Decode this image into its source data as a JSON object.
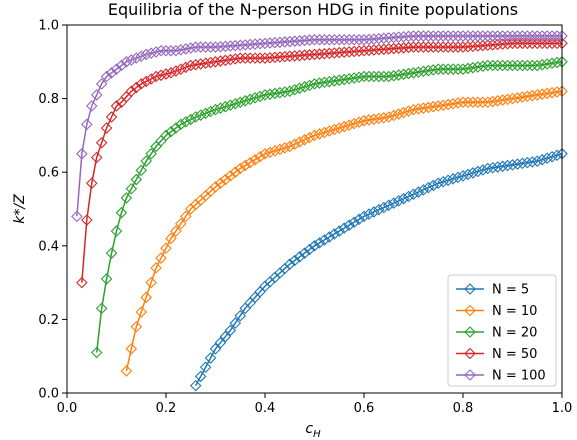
{
  "chart_data": {
    "type": "line",
    "title": "Equilibria of the N-person HDG in finite populations",
    "xlabel_main": "c",
    "xlabel_sub": "H",
    "ylabel": "k*/Z",
    "xlim": [
      0.0,
      1.0
    ],
    "ylim": [
      0.0,
      1.0
    ],
    "x_ticks": [
      "0.0",
      "0.2",
      "0.4",
      "0.6",
      "0.8",
      "1.0"
    ],
    "y_ticks": [
      "0.0",
      "0.2",
      "0.4",
      "0.6",
      "0.8",
      "1.0"
    ],
    "grid": false,
    "legend_position": "lower-right",
    "marker": "diamond-open",
    "series": [
      {
        "name": "N = 5",
        "color": "#1f77b4",
        "x_start": 0.26,
        "points": [
          [
            0.26,
            0.02
          ],
          [
            0.28,
            0.07
          ],
          [
            0.3,
            0.12
          ],
          [
            0.33,
            0.17
          ],
          [
            0.36,
            0.23
          ],
          [
            0.4,
            0.29
          ],
          [
            0.45,
            0.35
          ],
          [
            0.5,
            0.4
          ],
          [
            0.55,
            0.44
          ],
          [
            0.6,
            0.48
          ],
          [
            0.65,
            0.51
          ],
          [
            0.7,
            0.54
          ],
          [
            0.75,
            0.57
          ],
          [
            0.8,
            0.59
          ],
          [
            0.85,
            0.61
          ],
          [
            0.9,
            0.62
          ],
          [
            0.95,
            0.63
          ],
          [
            1.0,
            0.65
          ]
        ]
      },
      {
        "name": "N = 10",
        "color": "#ff7f0e",
        "x_start": 0.12,
        "points": [
          [
            0.12,
            0.06
          ],
          [
            0.13,
            0.12
          ],
          [
            0.14,
            0.18
          ],
          [
            0.16,
            0.26
          ],
          [
            0.18,
            0.34
          ],
          [
            0.21,
            0.42
          ],
          [
            0.25,
            0.5
          ],
          [
            0.3,
            0.56
          ],
          [
            0.35,
            0.61
          ],
          [
            0.4,
            0.65
          ],
          [
            0.45,
            0.67
          ],
          [
            0.5,
            0.7
          ],
          [
            0.55,
            0.72
          ],
          [
            0.6,
            0.74
          ],
          [
            0.65,
            0.75
          ],
          [
            0.7,
            0.77
          ],
          [
            0.75,
            0.78
          ],
          [
            0.8,
            0.79
          ],
          [
            0.85,
            0.79
          ],
          [
            0.9,
            0.8
          ],
          [
            0.95,
            0.81
          ],
          [
            1.0,
            0.82
          ]
        ]
      },
      {
        "name": "N = 20",
        "color": "#2ca02c",
        "x_start": 0.06,
        "points": [
          [
            0.06,
            0.11
          ],
          [
            0.07,
            0.23
          ],
          [
            0.08,
            0.31
          ],
          [
            0.09,
            0.38
          ],
          [
            0.1,
            0.44
          ],
          [
            0.11,
            0.49
          ],
          [
            0.12,
            0.53
          ],
          [
            0.14,
            0.58
          ],
          [
            0.16,
            0.63
          ],
          [
            0.18,
            0.67
          ],
          [
            0.2,
            0.7
          ],
          [
            0.23,
            0.73
          ],
          [
            0.26,
            0.75
          ],
          [
            0.3,
            0.77
          ],
          [
            0.35,
            0.79
          ],
          [
            0.4,
            0.81
          ],
          [
            0.45,
            0.82
          ],
          [
            0.5,
            0.84
          ],
          [
            0.55,
            0.85
          ],
          [
            0.6,
            0.86
          ],
          [
            0.65,
            0.86
          ],
          [
            0.7,
            0.87
          ],
          [
            0.75,
            0.88
          ],
          [
            0.8,
            0.88
          ],
          [
            0.85,
            0.89
          ],
          [
            0.9,
            0.89
          ],
          [
            0.95,
            0.89
          ],
          [
            1.0,
            0.9
          ]
        ]
      },
      {
        "name": "N = 50",
        "color": "#d62728",
        "x_start": 0.03,
        "points": [
          [
            0.03,
            0.3
          ],
          [
            0.04,
            0.47
          ],
          [
            0.05,
            0.57
          ],
          [
            0.06,
            0.64
          ],
          [
            0.07,
            0.68
          ],
          [
            0.08,
            0.72
          ],
          [
            0.09,
            0.75
          ],
          [
            0.1,
            0.78
          ],
          [
            0.11,
            0.79
          ],
          [
            0.13,
            0.82
          ],
          [
            0.15,
            0.84
          ],
          [
            0.18,
            0.86
          ],
          [
            0.21,
            0.87
          ],
          [
            0.25,
            0.89
          ],
          [
            0.3,
            0.9
          ],
          [
            0.35,
            0.91
          ],
          [
            0.4,
            0.91
          ],
          [
            0.5,
            0.92
          ],
          [
            0.6,
            0.93
          ],
          [
            0.7,
            0.94
          ],
          [
            0.8,
            0.94
          ],
          [
            0.9,
            0.95
          ],
          [
            1.0,
            0.95
          ]
        ]
      },
      {
        "name": "N = 100",
        "color": "#9467bd",
        "x_start": 0.02,
        "points": [
          [
            0.02,
            0.48
          ],
          [
            0.03,
            0.65
          ],
          [
            0.04,
            0.73
          ],
          [
            0.05,
            0.78
          ],
          [
            0.06,
            0.81
          ],
          [
            0.07,
            0.84
          ],
          [
            0.08,
            0.86
          ],
          [
            0.09,
            0.87
          ],
          [
            0.1,
            0.88
          ],
          [
            0.12,
            0.9
          ],
          [
            0.14,
            0.91
          ],
          [
            0.16,
            0.92
          ],
          [
            0.19,
            0.93
          ],
          [
            0.22,
            0.93
          ],
          [
            0.26,
            0.94
          ],
          [
            0.3,
            0.94
          ],
          [
            0.4,
            0.95
          ],
          [
            0.5,
            0.96
          ],
          [
            0.6,
            0.96
          ],
          [
            0.7,
            0.97
          ],
          [
            0.8,
            0.97
          ],
          [
            0.9,
            0.97
          ],
          [
            1.0,
            0.97
          ]
        ]
      }
    ]
  }
}
